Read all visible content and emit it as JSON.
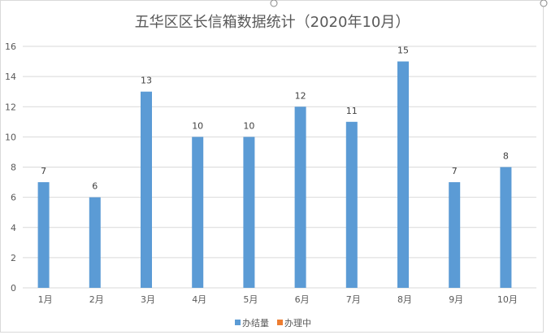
{
  "chart_data": {
    "type": "bar",
    "title": "五华区区长信箱数据统计（2020年10月）",
    "categories": [
      "1月",
      "2月",
      "3月",
      "4月",
      "5月",
      "6月",
      "7月",
      "8月",
      "9月",
      "10月"
    ],
    "series": [
      {
        "name": "办结量",
        "color": "#5B9BD5",
        "values": [
          7,
          6,
          13,
          10,
          10,
          12,
          11,
          15,
          7,
          8
        ]
      },
      {
        "name": "办理中",
        "color": "#ED7D31",
        "values": [
          0,
          0,
          0,
          0,
          0,
          0,
          0,
          0,
          0,
          0
        ]
      }
    ],
    "ylim": [
      0,
      16
    ],
    "yticks": [
      0,
      2,
      4,
      6,
      8,
      10,
      12,
      14,
      16
    ],
    "grid": true,
    "legend_position": "bottom",
    "data_labels": true
  }
}
